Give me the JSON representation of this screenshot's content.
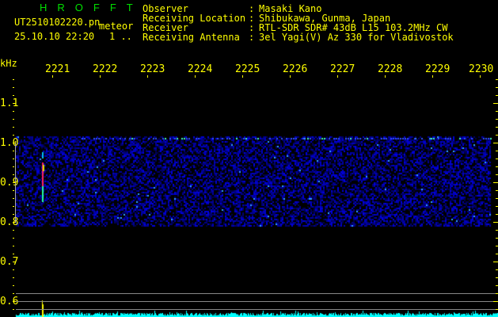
{
  "header": {
    "title": "HROFFT",
    "filename": "UT2510102220.pn",
    "mode": "meteor",
    "datetime": "25.10.10 22:20",
    "counter": "1 ..",
    "fields": [
      {
        "label": "Observer",
        "value": "Masaki Kano"
      },
      {
        "label": "Receiving Location",
        "value": "Shibukawa, Gunma, Japan"
      },
      {
        "label": "Receiver",
        "value": "RTL-SDR SDR# 43dB L15 103.2MHz CW"
      },
      {
        "label": "Receiving Antenna",
        "value": "3el Yagi(V) Az 330 for Vladivostok"
      }
    ]
  },
  "axis": {
    "unit": "kHz",
    "time_labels": [
      "2221",
      "2222",
      "2223",
      "2224",
      "2225",
      "2226",
      "2227",
      "2228",
      "2229",
      "2230"
    ],
    "freq_labels": [
      "1.1",
      "1.0",
      "0.9",
      "0.8",
      "0.7",
      "0.6"
    ]
  },
  "colors": {
    "text": "#ffff00",
    "title": "#00e000",
    "spectrum": "#00ffff",
    "noise": "#0000cc"
  }
}
